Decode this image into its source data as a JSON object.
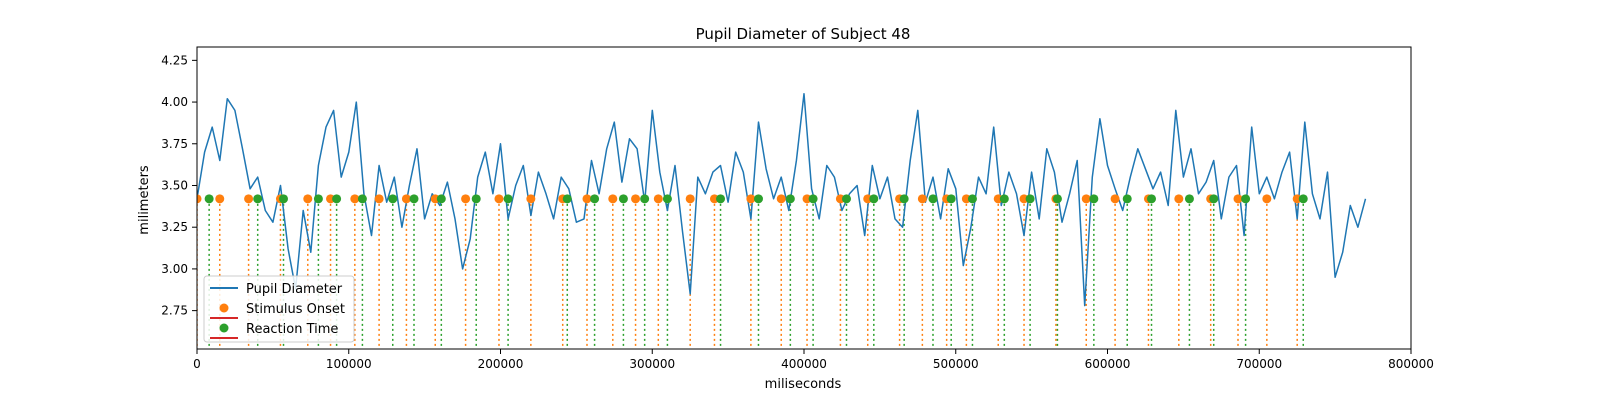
{
  "chart_data": {
    "type": "line",
    "title": "Pupil Diameter of Subject 48",
    "xlabel": "miliseconds",
    "ylabel": "milimeters",
    "xlim": [
      0,
      800000
    ],
    "ylim": [
      2.52,
      4.33
    ],
    "xticks": [
      0,
      100000,
      200000,
      300000,
      400000,
      500000,
      600000,
      700000,
      800000
    ],
    "yticks": [
      2.75,
      3.0,
      3.25,
      3.5,
      3.75,
      4.0,
      4.25
    ],
    "grid": false,
    "legend_placement": "lower-left",
    "colors": {
      "pupil": "#1f77b4",
      "stimulus": "#ff7f0e",
      "reaction": "#2ca02c",
      "stem_base": "#d62728"
    },
    "series": [
      {
        "name": "Pupil Diameter",
        "kind": "line",
        "x_start": 0,
        "x_step": 5000,
        "values": [
          3.42,
          3.7,
          3.85,
          3.65,
          4.02,
          3.95,
          3.72,
          3.48,
          3.55,
          3.35,
          3.28,
          3.5,
          3.12,
          2.88,
          3.35,
          3.1,
          3.62,
          3.85,
          3.95,
          3.55,
          3.7,
          4.0,
          3.45,
          3.2,
          3.62,
          3.4,
          3.55,
          3.25,
          3.5,
          3.72,
          3.3,
          3.45,
          3.38,
          3.52,
          3.3,
          3.0,
          3.18,
          3.55,
          3.7,
          3.45,
          3.75,
          3.3,
          3.5,
          3.62,
          3.32,
          3.58,
          3.45,
          3.3,
          3.55,
          3.48,
          3.28,
          3.3,
          3.65,
          3.45,
          3.72,
          3.88,
          3.52,
          3.78,
          3.72,
          3.4,
          3.95,
          3.58,
          3.35,
          3.62,
          3.22,
          2.85,
          3.55,
          3.45,
          3.58,
          3.62,
          3.4,
          3.7,
          3.58,
          3.3,
          3.88,
          3.6,
          3.42,
          3.55,
          3.35,
          3.65,
          4.05,
          3.48,
          3.3,
          3.62,
          3.55,
          3.35,
          3.45,
          3.5,
          3.2,
          3.62,
          3.42,
          3.55,
          3.3,
          3.25,
          3.65,
          3.95,
          3.4,
          3.55,
          3.3,
          3.6,
          3.48,
          3.02,
          3.25,
          3.55,
          3.45,
          3.85,
          3.38,
          3.58,
          3.45,
          3.2,
          3.58,
          3.3,
          3.72,
          3.58,
          3.28,
          3.45,
          3.65,
          2.78,
          3.55,
          3.9,
          3.62,
          3.48,
          3.35,
          3.55,
          3.72,
          3.6,
          3.48,
          3.58,
          3.38,
          3.95,
          3.55,
          3.72,
          3.45,
          3.52,
          3.65,
          3.3,
          3.55,
          3.62,
          3.2,
          3.85,
          3.45,
          3.55,
          3.42,
          3.58,
          3.7,
          3.3,
          3.88,
          3.45,
          3.3,
          3.58,
          2.95,
          3.1,
          3.38,
          3.25,
          3.42
        ]
      },
      {
        "name": "Stimulus Onset",
        "kind": "stem",
        "y_value": 3.42,
        "x": [
          0,
          15000,
          34000,
          55000,
          73000,
          88000,
          104000,
          120000,
          138000,
          157000,
          177000,
          199000,
          220000,
          241000,
          257000,
          274000,
          289000,
          304000,
          325000,
          341000,
          365000,
          385000,
          402000,
          424000,
          442000,
          463000,
          478000,
          494000,
          507000,
          528000,
          545000,
          566000,
          586000,
          605000,
          627000,
          647000,
          668000,
          686000,
          705000,
          725000
        ]
      },
      {
        "name": "Reaction Time",
        "kind": "stem",
        "y_value": 3.42,
        "x": [
          8000,
          40000,
          57000,
          80000,
          92000,
          109000,
          129000,
          143000,
          161000,
          184000,
          205000,
          244000,
          262000,
          281000,
          295000,
          310000,
          345000,
          370000,
          391000,
          406000,
          428000,
          446000,
          466000,
          485000,
          497000,
          511000,
          532000,
          549000,
          567000,
          591000,
          613000,
          629000,
          654000,
          670000,
          691000,
          729000
        ]
      }
    ]
  }
}
